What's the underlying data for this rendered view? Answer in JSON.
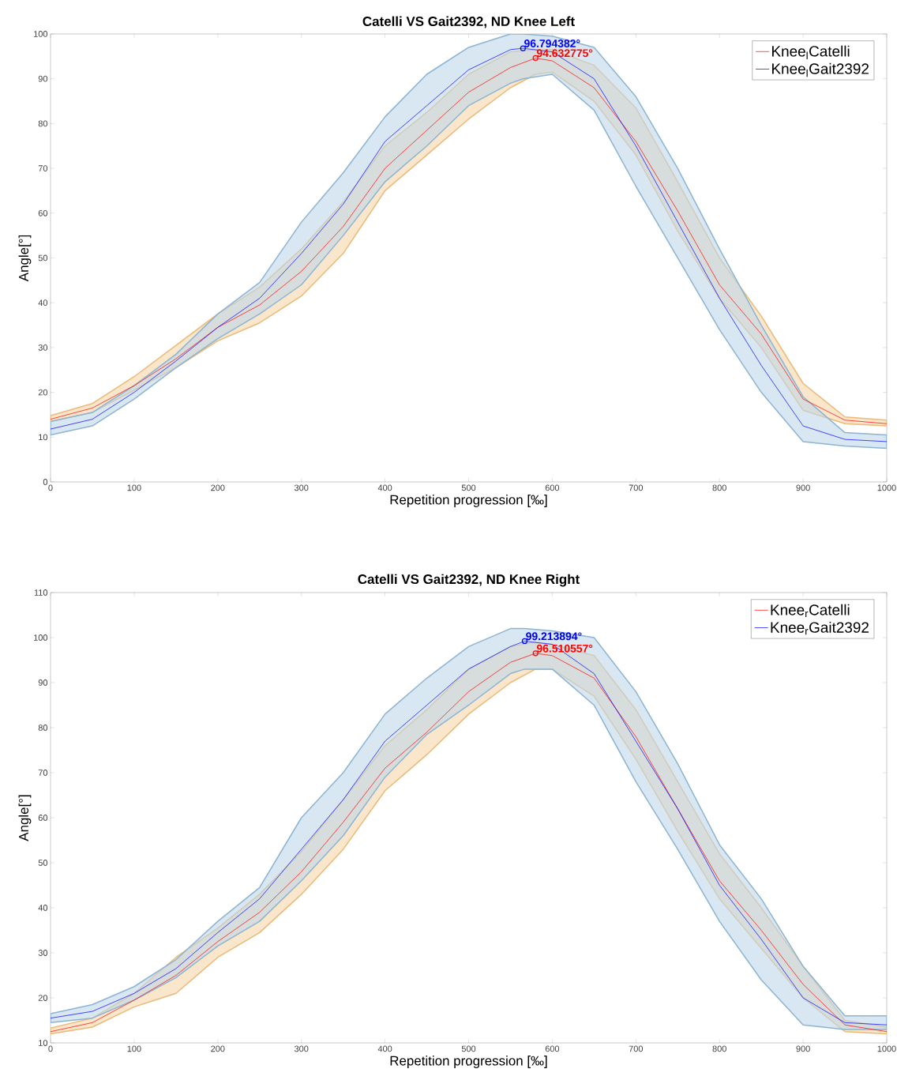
{
  "chart_data": [
    {
      "type": "line",
      "title": "Catelli VS Gait2392, ND Knee Left",
      "xlabel": "Repetition progression [‰]",
      "ylabel": "Angle[°]",
      "x": [
        0,
        50,
        100,
        150,
        200,
        250,
        300,
        350,
        400,
        450,
        500,
        550,
        580,
        600,
        650,
        700,
        750,
        800,
        850,
        900,
        950,
        1000
      ],
      "series": [
        {
          "name": "Knee$_{l}$Catelli",
          "color": "#ff0000",
          "values": [
            14,
            16.5,
            21.5,
            27.5,
            34.5,
            39.5,
            47,
            57,
            70,
            78.5,
            87,
            92.5,
            94.6,
            94,
            88,
            76,
            60.5,
            44,
            33,
            18.5,
            13.8,
            13
          ],
          "lower": [
            13.5,
            15.5,
            20.5,
            25.5,
            31.5,
            35.5,
            41.5,
            51,
            65,
            73,
            81,
            88,
            91,
            91.5,
            85,
            73,
            56,
            41,
            30,
            16,
            13,
            12.5
          ],
          "upper": [
            14.8,
            17.5,
            23.5,
            30.5,
            37.5,
            43.5,
            52,
            62.5,
            75,
            82.5,
            91,
            96,
            96.5,
            96.5,
            93,
            83.5,
            67,
            50,
            37,
            22,
            14.5,
            13.8
          ]
        },
        {
          "name": "Knee$_{l}$Gait2392",
          "color": "#0000ff",
          "x": [
            0,
            50,
            100,
            150,
            200,
            250,
            300,
            350,
            400,
            450,
            500,
            550,
            565,
            600,
            650,
            700,
            750,
            800,
            850,
            900,
            950,
            1000
          ],
          "values": [
            11.8,
            14,
            20,
            27,
            34.5,
            41,
            51,
            62,
            76,
            84,
            92,
            96.5,
            96.8,
            96,
            90,
            75,
            58,
            41,
            26,
            12.5,
            9.5,
            9
          ],
          "lower": [
            10.5,
            12.5,
            18.5,
            25.5,
            32,
            37.5,
            44,
            55,
            67,
            75,
            84,
            89,
            90,
            91,
            83,
            66,
            50,
            34,
            20,
            9,
            8,
            7.5
          ],
          "upper": [
            13.5,
            15.5,
            21.5,
            28.5,
            37.5,
            44.5,
            58,
            69,
            81.5,
            91,
            97,
            100,
            100,
            99.5,
            97,
            86,
            70,
            52,
            35,
            19,
            11,
            10.5
          ]
        }
      ],
      "annotations": [
        {
          "text": "94.632775°",
          "x": 580,
          "y": 94.632775
        },
        {
          "text": "96.794382°",
          "x": 565,
          "y": 96.794382
        }
      ],
      "xlim": [
        0,
        1000
      ],
      "ylim": [
        0,
        100
      ],
      "xticks": [
        0,
        100,
        200,
        300,
        400,
        500,
        600,
        700,
        800,
        900,
        1000
      ],
      "yticks": [
        0,
        10,
        20,
        30,
        40,
        50,
        60,
        70,
        80,
        90,
        100
      ],
      "grid": false,
      "legend": "top right"
    },
    {
      "type": "line",
      "title": "Catelli VS Gait2392, ND Knee Right",
      "xlabel": "Repetition progression [‰]",
      "ylabel": "Angle[°]",
      "x": [
        0,
        50,
        100,
        150,
        200,
        250,
        300,
        350,
        400,
        450,
        500,
        550,
        580,
        600,
        650,
        700,
        750,
        800,
        850,
        900,
        950,
        1000
      ],
      "series": [
        {
          "name": "Knee$_{r}$Catelli",
          "color": "#ff0000",
          "values": [
            12.5,
            14.5,
            19.5,
            25,
            32.5,
            39,
            48,
            59,
            71,
            79,
            88,
            94.5,
            96.5,
            96,
            91,
            78,
            62,
            46,
            35,
            23,
            14,
            12.5
          ],
          "lower": [
            12,
            13.5,
            18,
            21,
            29,
            34.5,
            43,
            53,
            66,
            74,
            83,
            90,
            93,
            93,
            87,
            73,
            57,
            42,
            31,
            20,
            12.5,
            12
          ],
          "upper": [
            13.3,
            15.5,
            21,
            29,
            35.5,
            43,
            52.5,
            64,
            76,
            84,
            93,
            98,
            99,
            98.5,
            96,
            84,
            68,
            52,
            40,
            27,
            15,
            13.5
          ]
        },
        {
          "name": "Knee$_{r}$Gait2392",
          "color": "#0000ff",
          "x": [
            0,
            50,
            100,
            150,
            200,
            250,
            300,
            350,
            400,
            450,
            500,
            550,
            567,
            600,
            650,
            700,
            750,
            800,
            850,
            900,
            950,
            1000
          ],
          "values": [
            15.5,
            17,
            21,
            26.5,
            34.5,
            42,
            53,
            64,
            77,
            85,
            93,
            98,
            99.2,
            98.5,
            92,
            77,
            62,
            45,
            33,
            20,
            14.5,
            14
          ],
          "lower": [
            14.5,
            15.5,
            19.5,
            24.5,
            31.5,
            37,
            46,
            56,
            69,
            78.5,
            85,
            92,
            93,
            93,
            85,
            68,
            53,
            37,
            24,
            14,
            13,
            13
          ],
          "upper": [
            16.5,
            18.5,
            22.5,
            28.5,
            37,
            44.5,
            60,
            70,
            83,
            91,
            98,
            102,
            102,
            101.5,
            100,
            88,
            72,
            54,
            42,
            27,
            16,
            16
          ]
        }
      ],
      "annotations": [
        {
          "text": "96.510557°",
          "x": 580,
          "y": 96.510557
        },
        {
          "text": "99.213894°",
          "x": 567,
          "y": 99.213894
        }
      ],
      "xlim": [
        0,
        1000
      ],
      "ylim": [
        10,
        110
      ],
      "xticks": [
        0,
        100,
        200,
        300,
        400,
        500,
        600,
        700,
        800,
        900,
        1000
      ],
      "yticks": [
        10,
        20,
        30,
        40,
        50,
        60,
        70,
        80,
        90,
        100,
        110
      ],
      "grid": false,
      "legend": "top right"
    }
  ]
}
